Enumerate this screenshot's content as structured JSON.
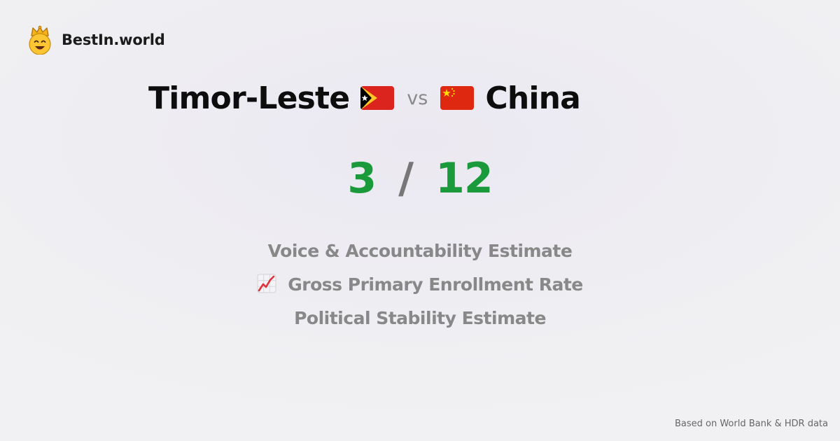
{
  "brand": {
    "name": "BestIn.world",
    "logo_icon": "crowned-smiley-icon"
  },
  "comparison": {
    "country_a": {
      "name": "Timor-Leste",
      "flag_icon": "timor-leste-flag-icon",
      "score": "3"
    },
    "vs_label": "vs",
    "country_b": {
      "name": "China",
      "flag_icon": "china-flag-icon",
      "score": "12"
    },
    "score_separator": "/"
  },
  "metrics": [
    {
      "label": "Voice & Accountability Estimate",
      "icon": ""
    },
    {
      "label": "Gross Primary Enrollment Rate",
      "icon": "chart-increasing-icon"
    },
    {
      "label": "Political Stability Estimate",
      "icon": ""
    }
  ],
  "footer": {
    "source_note": "Based on World Bank & HDR data"
  },
  "colors": {
    "score_green": "#1b9a3c",
    "muted_text": "#888888",
    "background": "#eeedf2"
  }
}
